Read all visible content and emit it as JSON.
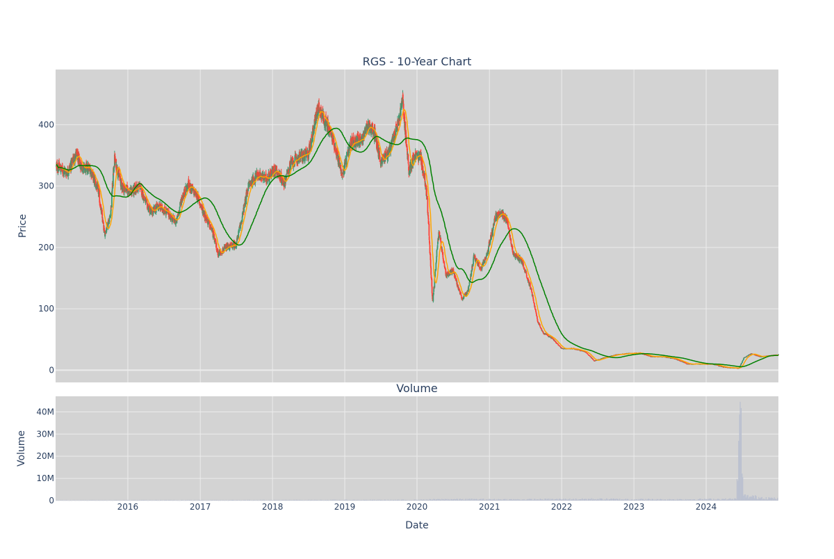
{
  "colors": {
    "plot_bg": "#d3d3d3",
    "grid": "#ececec",
    "text": "#2a3f5f",
    "candle_up": "#3d9970",
    "candle_down": "#ff4136",
    "sma_short": "#ffa500",
    "sma_long": "#008000"
  },
  "chart_data": {
    "type": "candlestick",
    "title": "RGS - 10-Year Chart",
    "subtitle": "Volume",
    "xlabel": "Date",
    "ylabel_price": "Price",
    "ylabel_volume": "Volume",
    "xlim": [
      "2015-01-01",
      "2024-12-31"
    ],
    "ylim_price": [
      -20,
      490
    ],
    "ylim_volume": [
      0,
      47000000
    ],
    "grid": true,
    "x_ticks": [
      {
        "date": "2016-01-01",
        "label": "2016"
      },
      {
        "date": "2017-01-01",
        "label": "2017"
      },
      {
        "date": "2018-01-01",
        "label": "2018"
      },
      {
        "date": "2019-01-01",
        "label": "2019"
      },
      {
        "date": "2020-01-01",
        "label": "2020"
      },
      {
        "date": "2021-01-01",
        "label": "2021"
      },
      {
        "date": "2022-01-01",
        "label": "2022"
      },
      {
        "date": "2023-01-01",
        "label": "2023"
      },
      {
        "date": "2024-01-01",
        "label": "2024"
      }
    ],
    "price_ticks": [
      {
        "value": 0,
        "label": "0"
      },
      {
        "value": 100,
        "label": "100"
      },
      {
        "value": 200,
        "label": "200"
      },
      {
        "value": 300,
        "label": "300"
      },
      {
        "value": 400,
        "label": "400"
      }
    ],
    "volume_ticks": [
      {
        "value": 0,
        "label": "0"
      },
      {
        "value": 10000000,
        "label": "10M"
      },
      {
        "value": 20000000,
        "label": "20M"
      },
      {
        "value": 30000000,
        "label": "30M"
      },
      {
        "value": 40000000,
        "label": "40M"
      }
    ],
    "price_anchors": [
      [
        "2015-01-05",
        332
      ],
      [
        "2015-03-01",
        322
      ],
      [
        "2015-04-15",
        352
      ],
      [
        "2015-05-15",
        330
      ],
      [
        "2015-06-25",
        328
      ],
      [
        "2015-08-05",
        292
      ],
      [
        "2015-09-05",
        222
      ],
      [
        "2015-10-05",
        252
      ],
      [
        "2015-10-25",
        345
      ],
      [
        "2015-12-01",
        300
      ],
      [
        "2016-01-15",
        290
      ],
      [
        "2016-03-01",
        300
      ],
      [
        "2016-04-05",
        270
      ],
      [
        "2016-05-01",
        256
      ],
      [
        "2016-06-01",
        268
      ],
      [
        "2016-07-15",
        258
      ],
      [
        "2016-09-01",
        240
      ],
      [
        "2016-10-01",
        282
      ],
      [
        "2016-11-01",
        302
      ],
      [
        "2016-12-15",
        285
      ],
      [
        "2017-01-20",
        255
      ],
      [
        "2017-03-01",
        228
      ],
      [
        "2017-04-01",
        190
      ],
      [
        "2017-05-15",
        200
      ],
      [
        "2017-07-01",
        205
      ],
      [
        "2017-08-01",
        250
      ],
      [
        "2017-09-01",
        300
      ],
      [
        "2017-10-15",
        318
      ],
      [
        "2017-12-01",
        312
      ],
      [
        "2018-01-15",
        328
      ],
      [
        "2018-03-01",
        305
      ],
      [
        "2018-04-01",
        335
      ],
      [
        "2018-05-15",
        348
      ],
      [
        "2018-07-01",
        352
      ],
      [
        "2018-08-20",
        430
      ],
      [
        "2018-09-25",
        405
      ],
      [
        "2018-11-01",
        378
      ],
      [
        "2018-12-20",
        318
      ],
      [
        "2019-02-01",
        370
      ],
      [
        "2019-04-01",
        378
      ],
      [
        "2019-05-01",
        400
      ],
      [
        "2019-06-01",
        385
      ],
      [
        "2019-07-01",
        340
      ],
      [
        "2019-08-15",
        358
      ],
      [
        "2019-10-01",
        405
      ],
      [
        "2019-10-20",
        442
      ],
      [
        "2019-11-20",
        325
      ],
      [
        "2019-12-20",
        350
      ],
      [
        "2020-01-20",
        348
      ],
      [
        "2020-02-20",
        285
      ],
      [
        "2020-03-20",
        110
      ],
      [
        "2020-04-20",
        230
      ],
      [
        "2020-05-25",
        155
      ],
      [
        "2020-07-01",
        162
      ],
      [
        "2020-08-15",
        115
      ],
      [
        "2020-09-15",
        130
      ],
      [
        "2020-10-15",
        185
      ],
      [
        "2020-11-20",
        165
      ],
      [
        "2020-12-20",
        190
      ],
      [
        "2021-02-01",
        250
      ],
      [
        "2021-03-01",
        255
      ],
      [
        "2021-04-01",
        245
      ],
      [
        "2021-05-01",
        190
      ],
      [
        "2021-06-15",
        178
      ],
      [
        "2021-08-01",
        130
      ],
      [
        "2021-09-01",
        80
      ],
      [
        "2021-10-01",
        60
      ],
      [
        "2021-11-15",
        52
      ],
      [
        "2022-01-01",
        35
      ],
      [
        "2022-03-01",
        35
      ],
      [
        "2022-05-01",
        30
      ],
      [
        "2022-06-15",
        15
      ],
      [
        "2022-08-01",
        20
      ],
      [
        "2022-10-01",
        25
      ],
      [
        "2022-12-01",
        27
      ],
      [
        "2023-02-01",
        28
      ],
      [
        "2023-04-01",
        22
      ],
      [
        "2023-06-01",
        22
      ],
      [
        "2023-08-01",
        18
      ],
      [
        "2023-10-01",
        10
      ],
      [
        "2023-12-01",
        10
      ],
      [
        "2024-02-01",
        10
      ],
      [
        "2024-04-01",
        5
      ],
      [
        "2024-06-15",
        3
      ],
      [
        "2024-07-10",
        20
      ],
      [
        "2024-08-15",
        27
      ],
      [
        "2024-10-01",
        22
      ],
      [
        "2024-12-31",
        25
      ]
    ],
    "volume_anchors": [
      [
        "2015-01-05",
        150000
      ],
      [
        "2019-12-01",
        300000
      ],
      [
        "2020-06-01",
        600000
      ],
      [
        "2021-06-01",
        500000
      ],
      [
        "2022-06-01",
        700000
      ],
      [
        "2023-06-01",
        500000
      ],
      [
        "2024-06-01",
        700000
      ],
      [
        "2024-06-28",
        45000000
      ],
      [
        "2024-07-05",
        2000000
      ],
      [
        "2024-12-31",
        800000
      ]
    ]
  }
}
